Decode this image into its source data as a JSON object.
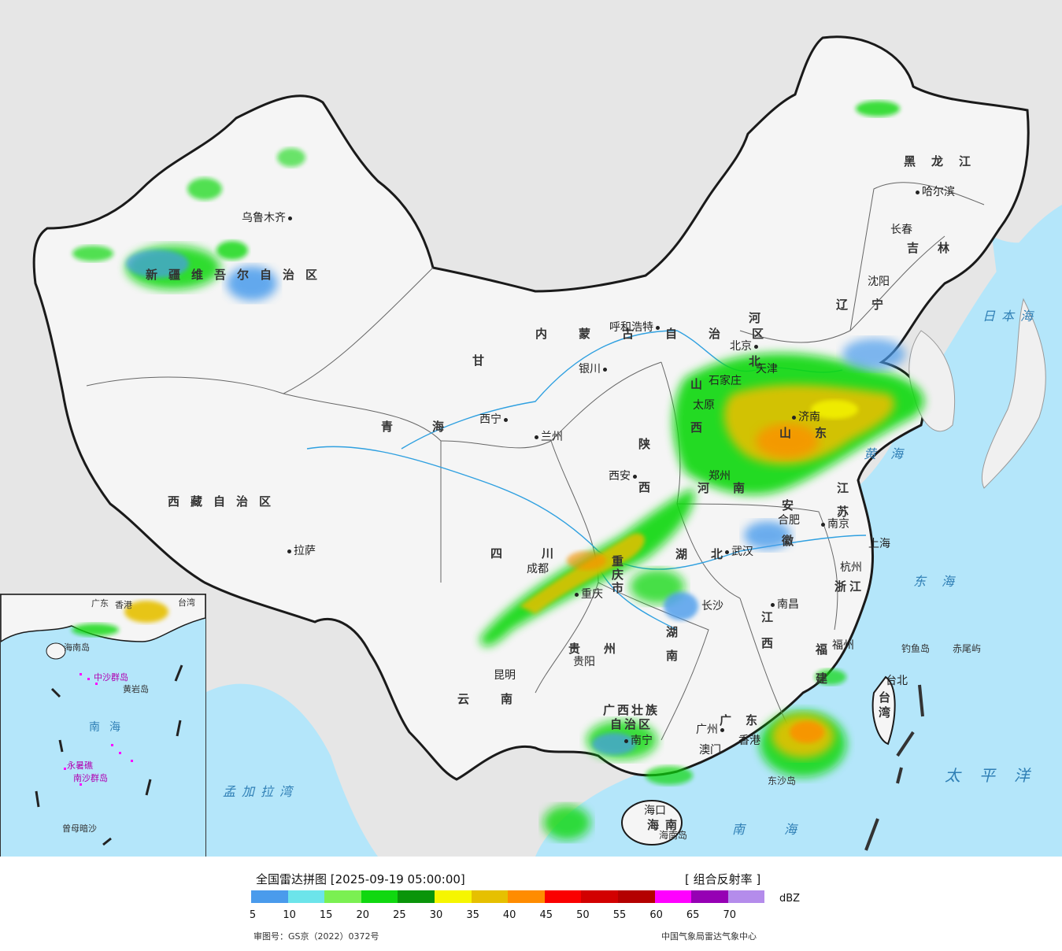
{
  "legend": {
    "title": "全国雷达拼图 [2025-09-19 05:00:00]",
    "product": "[ 组合反射率 ]",
    "unit": "dBZ",
    "scale": [
      {
        "value": 5,
        "color": "#4a9bec"
      },
      {
        "value": 10,
        "color": "#6ce4ea"
      },
      {
        "value": 15,
        "color": "#7bf052"
      },
      {
        "value": 20,
        "color": "#10d810"
      },
      {
        "value": 25,
        "color": "#0a950a"
      },
      {
        "value": 30,
        "color": "#f6f600"
      },
      {
        "value": 35,
        "color": "#e6c000"
      },
      {
        "value": 40,
        "color": "#ff8c00"
      },
      {
        "value": 45,
        "color": "#fa0000"
      },
      {
        "value": 50,
        "color": "#d20000"
      },
      {
        "value": 55,
        "color": "#b40000"
      },
      {
        "value": 60,
        "color": "#ff00ff"
      },
      {
        "value": 65,
        "color": "#9600b4"
      },
      {
        "value": 70,
        "color": "#b48ceb"
      }
    ],
    "tick_labels": [
      "5",
      "10",
      "15",
      "20",
      "25",
      "30",
      "35",
      "40",
      "45",
      "50",
      "55",
      "60",
      "65",
      "70"
    ],
    "review_number": "审图号：GS京（2022）0372号",
    "source": "中国气象局雷达气象中心"
  },
  "map": {
    "colors": {
      "land": "#f5f5f5",
      "sea": "#b4e6fa",
      "outside": "#e6e6e6",
      "border": "#1a1a1a",
      "river": "#2fa0e0"
    },
    "regions": [
      {
        "name": "新疆维吾尔自治区"
      },
      {
        "name": "西藏自治区"
      },
      {
        "name": "青海"
      },
      {
        "name": "甘"
      },
      {
        "name": "内蒙古自治区"
      },
      {
        "name": "黑龙江"
      },
      {
        "name": "吉林"
      },
      {
        "name": "辽宁"
      },
      {
        "name": "河北"
      },
      {
        "name": "山西"
      },
      {
        "name": "陕西"
      },
      {
        "name": "河南"
      },
      {
        "name": "山东"
      },
      {
        "name": "江苏"
      },
      {
        "name": "安徽"
      },
      {
        "name": "湖北"
      },
      {
        "name": "四川"
      },
      {
        "name": "重庆市"
      },
      {
        "name": "贵州"
      },
      {
        "name": "云南"
      },
      {
        "name": "湖南"
      },
      {
        "name": "江西"
      },
      {
        "name": "浙江"
      },
      {
        "name": "福建"
      },
      {
        "name": "广东"
      },
      {
        "name": "广西壮族自治区"
      },
      {
        "name": "海南"
      },
      {
        "name": "台湾"
      }
    ],
    "cities": [
      "乌鲁木齐",
      "拉萨",
      "西宁",
      "兰州",
      "银川",
      "呼和浩特",
      "北京",
      "天津",
      "石家庄",
      "太原",
      "济南",
      "郑州",
      "西安",
      "合肥",
      "南京",
      "上海",
      "杭州",
      "武汉",
      "成都",
      "重庆",
      "长沙",
      "南昌",
      "福州",
      "台北",
      "贵阳",
      "昆明",
      "南宁",
      "广州",
      "香港",
      "澳门",
      "海口",
      "沈阳",
      "长春",
      "哈尔滨"
    ],
    "seas": [
      "日本海",
      "黄海",
      "东海",
      "太平洋",
      "南海",
      "孟加拉湾"
    ],
    "islands": [
      "钓鱼岛",
      "赤尾屿",
      "东沙岛",
      "海南岛"
    ],
    "inset_labels": [
      "广东",
      "香港",
      "台湾",
      "海南岛",
      "中沙群岛",
      "黄岩岛",
      "南海",
      "永暑礁",
      "南沙群岛",
      "曾母暗沙"
    ]
  }
}
